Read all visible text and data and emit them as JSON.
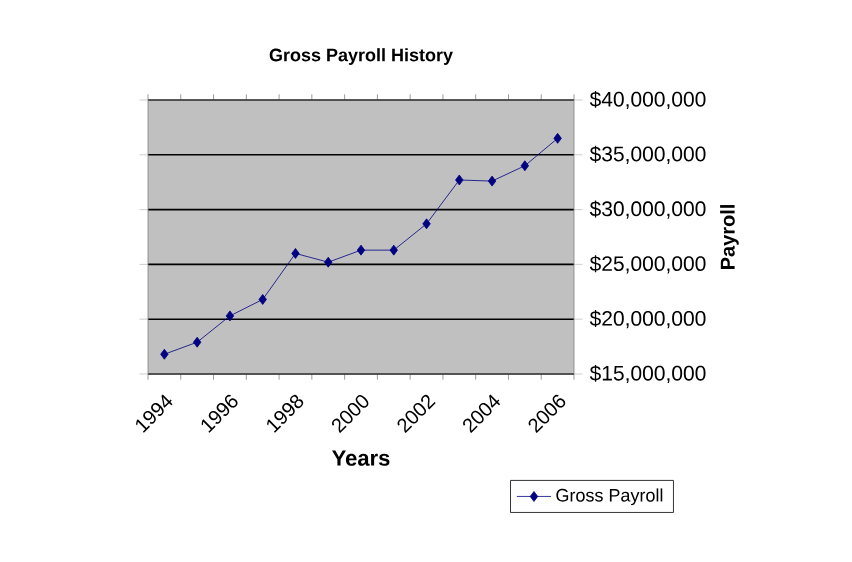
{
  "chart_data": {
    "type": "line",
    "title": "Gross Payroll History",
    "xlabel": "Years",
    "ylabel": "Payroll",
    "categories": [
      "1994",
      null,
      "1996",
      null,
      "1998",
      null,
      "2000",
      null,
      "2002",
      null,
      "2004",
      null,
      "2006"
    ],
    "series": [
      {
        "name": "Gross Payroll",
        "color": "#000080",
        "values": [
          16800000,
          17900000,
          20300000,
          21800000,
          26000000,
          25200000,
          26300000,
          26300000,
          28700000,
          32700000,
          32600000,
          34000000,
          36500000
        ]
      }
    ],
    "ylim": [
      15000000,
      40000000
    ],
    "yticks": [
      {
        "value": 15000000,
        "label": "$15,000,000"
      },
      {
        "value": 20000000,
        "label": "$20,000,000"
      },
      {
        "value": 25000000,
        "label": "$25,000,000"
      },
      {
        "value": 30000000,
        "label": "$30,000,000"
      },
      {
        "value": 35000000,
        "label": "$35,000,000"
      },
      {
        "value": 40000000,
        "label": "$40,000,000"
      }
    ],
    "grid": "y",
    "legend": "bottom right",
    "marker": "diamond",
    "line_style": "solid"
  }
}
